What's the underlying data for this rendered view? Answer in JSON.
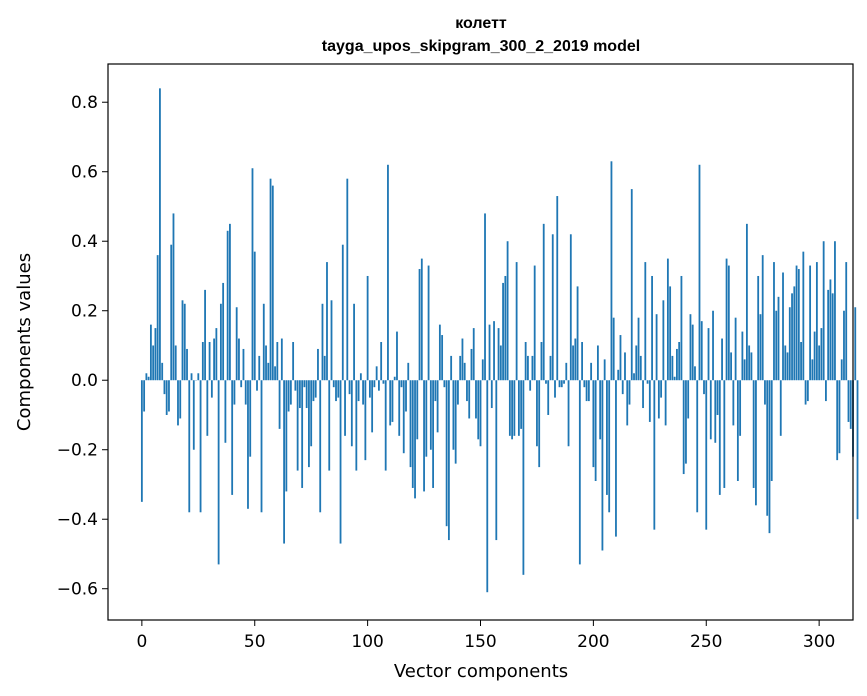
{
  "chart_data": {
    "type": "bar",
    "title_line1": "колетт",
    "title_line2": "tayga_upos_skipgram_300_2_2019 model",
    "xlabel": "Vector components",
    "ylabel": "Components values",
    "xlim": [
      -15,
      315
    ],
    "ylim": [
      -0.69,
      0.91
    ],
    "x_ticks": [
      0,
      50,
      100,
      150,
      200,
      250,
      300
    ],
    "x_tick_labels": [
      "0",
      "50",
      "100",
      "150",
      "200",
      "250",
      "300"
    ],
    "y_ticks": [
      -0.6,
      -0.4,
      -0.2,
      0.0,
      0.2,
      0.4,
      0.6,
      0.8
    ],
    "y_tick_labels": [
      "−0.6",
      "−0.4",
      "−0.2",
      "0.0",
      "0.2",
      "0.4",
      "0.6",
      "0.8"
    ],
    "bar_color": "#1f77b4",
    "values": [
      -0.35,
      -0.09,
      0.02,
      0.01,
      0.16,
      0.1,
      0.15,
      0.36,
      0.84,
      0.05,
      -0.04,
      -0.1,
      -0.09,
      0.39,
      0.48,
      0.1,
      -0.13,
      -0.11,
      0.23,
      0.22,
      0.09,
      -0.38,
      0.02,
      -0.2,
      0.0,
      0.02,
      -0.38,
      0.11,
      0.26,
      -0.16,
      0.11,
      -0.05,
      0.12,
      0.15,
      -0.53,
      0.22,
      0.28,
      -0.18,
      0.43,
      0.45,
      -0.33,
      -0.07,
      0.21,
      0.12,
      -0.02,
      0.09,
      -0.07,
      -0.37,
      -0.22,
      0.61,
      0.37,
      -0.03,
      0.07,
      -0.38,
      0.22,
      0.1,
      0.05,
      0.58,
      0.56,
      0.04,
      0.11,
      -0.14,
      0.12,
      -0.47,
      -0.32,
      -0.09,
      -0.07,
      0.11,
      -0.03,
      -0.26,
      -0.08,
      -0.31,
      -0.02,
      -0.08,
      -0.25,
      -0.19,
      -0.06,
      -0.05,
      0.09,
      -0.38,
      0.22,
      0.07,
      0.34,
      -0.26,
      0.23,
      -0.02,
      -0.06,
      -0.05,
      -0.47,
      0.39,
      -0.16,
      0.58,
      -0.04,
      -0.19,
      0.22,
      -0.26,
      -0.06,
      0.02,
      -0.07,
      -0.23,
      0.3,
      -0.05,
      -0.15,
      -0.02,
      0.04,
      -0.03,
      0.11,
      -0.01,
      -0.26,
      0.62,
      -0.13,
      -0.12,
      0.01,
      0.14,
      -0.16,
      -0.02,
      -0.21,
      -0.09,
      0.05,
      -0.25,
      -0.31,
      -0.34,
      -0.17,
      0.32,
      0.35,
      -0.32,
      -0.22,
      0.33,
      -0.2,
      -0.31,
      -0.06,
      -0.15,
      0.16,
      0.13,
      -0.02,
      -0.42,
      -0.46,
      0.07,
      -0.2,
      -0.24,
      -0.07,
      0.07,
      0.12,
      0.05,
      -0.06,
      -0.11,
      0.09,
      0.15,
      -0.11,
      -0.17,
      -0.19,
      0.06,
      0.48,
      -0.61,
      0.16,
      -0.08,
      0.17,
      -0.46,
      0.15,
      0.1,
      0.28,
      0.3,
      0.4,
      -0.16,
      -0.17,
      -0.16,
      0.34,
      -0.16,
      -0.14,
      -0.56,
      0.11,
      0.07,
      -0.03,
      0.07,
      0.33,
      -0.19,
      -0.25,
      0.11,
      0.45,
      -0.01,
      -0.1,
      0.07,
      0.42,
      -0.05,
      0.53,
      -0.02,
      -0.02,
      -0.01,
      0.05,
      -0.19,
      0.42,
      0.1,
      0.12,
      0.27,
      -0.53,
      0.11,
      -0.02,
      -0.06,
      -0.06,
      0.05,
      -0.25,
      -0.29,
      0.1,
      -0.17,
      -0.49,
      0.06,
      -0.33,
      -0.38,
      0.63,
      0.18,
      -0.45,
      0.03,
      0.13,
      -0.04,
      0.08,
      -0.13,
      -0.07,
      0.55,
      0.02,
      0.1,
      0.18,
      0.07,
      -0.08,
      0.34,
      -0.01,
      -0.12,
      0.3,
      -0.43,
      0.19,
      -0.11,
      -0.05,
      0.23,
      -0.13,
      0.35,
      0.27,
      0.07,
      0.01,
      0.09,
      0.11,
      0.3,
      -0.27,
      -0.24,
      -0.11,
      0.19,
      0.16,
      0.04,
      -0.38,
      0.62,
      0.17,
      -0.04,
      -0.43,
      0.15,
      -0.17,
      0.2,
      -0.18,
      -0.1,
      -0.33,
      0.12,
      -0.31,
      0.35,
      0.33,
      0.08,
      -0.13,
      0.18,
      -0.29,
      -0.16,
      0.14,
      0.06,
      0.45,
      0.1,
      0.08,
      -0.31,
      -0.36,
      0.3,
      0.19,
      0.36,
      -0.07,
      -0.39,
      -0.44,
      -0.29,
      0.34,
      0.2,
      0.24,
      -0.16,
      0.31,
      0.1,
      0.08,
      0.21,
      0.25,
      0.27,
      0.33,
      0.32,
      0.11,
      0.37,
      -0.07,
      -0.06,
      0.33,
      0.06,
      0.14,
      0.34,
      0.1,
      0.15,
      0.4,
      -0.06,
      0.26,
      0.29,
      0.25,
      0.4,
      -0.23,
      -0.21,
      0.06,
      0.2,
      0.34,
      -0.12,
      -0.14,
      -0.22,
      0.21,
      -0.4
    ]
  }
}
